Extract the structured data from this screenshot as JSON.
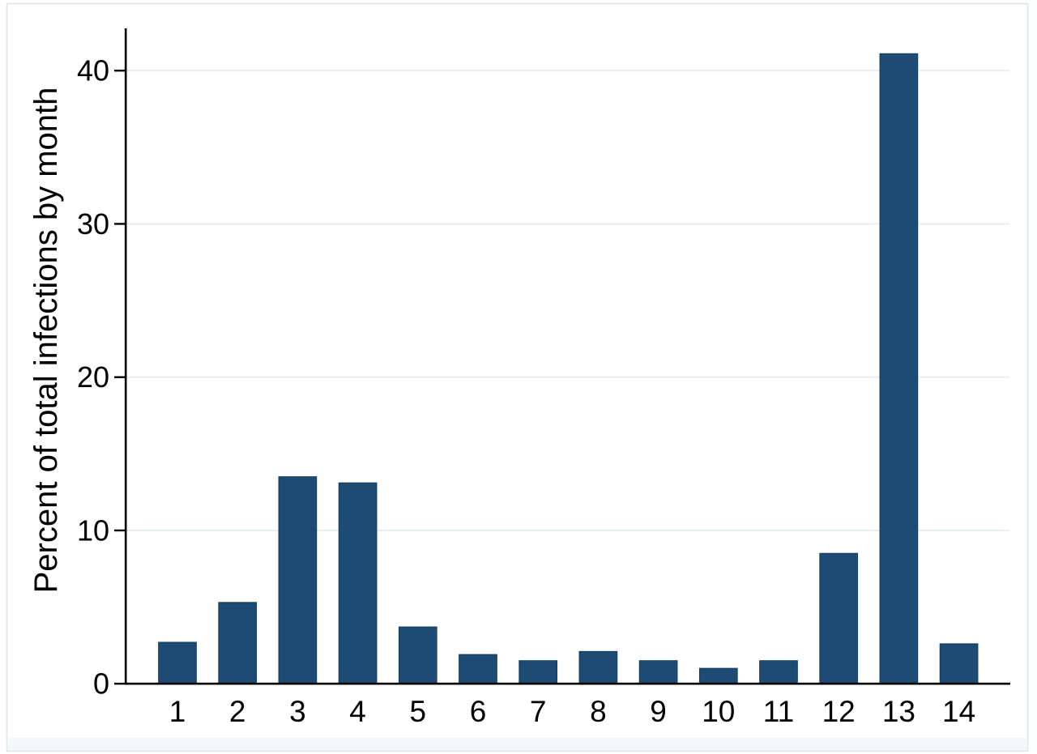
{
  "figure": {
    "background_color": "#ffffff",
    "border_color": "#dfe6ea",
    "footer_band_color": "#f5f8f9"
  },
  "chart_data": {
    "type": "bar",
    "categories": [
      "1",
      "2",
      "3",
      "4",
      "5",
      "6",
      "7",
      "8",
      "9",
      "10",
      "11",
      "12",
      "13",
      "14"
    ],
    "values": [
      2.7,
      5.3,
      13.5,
      13.1,
      3.7,
      1.9,
      1.5,
      2.1,
      1.5,
      1.0,
      1.5,
      8.5,
      41.1,
      2.6
    ],
    "title": "",
    "xlabel": "",
    "ylabel": "Percent of total infections by month",
    "ylim": [
      0,
      42.8
    ],
    "yticks": [
      0,
      10,
      20,
      30,
      40
    ],
    "grid": true,
    "legend": "none",
    "bar_color": "#1e4b73",
    "bar_outline_color": "#16405f",
    "gridline_color": "#e8eff2",
    "axis_color": "#000000",
    "text_color": "#000000"
  }
}
